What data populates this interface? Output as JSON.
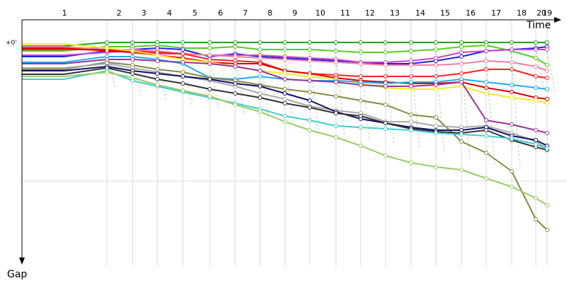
{
  "chart_data": {
    "type": "line",
    "x_axis_label": "Time",
    "y_axis_label": "Gap",
    "y_tick_label": "+0'",
    "laps": [
      "1",
      "2",
      "3",
      "4",
      "5",
      "6",
      "7",
      "8",
      "9",
      "10",
      "11",
      "12",
      "13",
      "14",
      "15",
      "16",
      "17",
      "18",
      "20",
      "19"
    ],
    "grid": true,
    "series": [
      {
        "color": "#1aa31a",
        "values": [
          5,
          0,
          0,
          0,
          0,
          0,
          0,
          0,
          0,
          0,
          0,
          0,
          0,
          0,
          0,
          0,
          0,
          0,
          0,
          0
        ]
      },
      {
        "color": "#55cc22",
        "values": [
          12,
          6,
          6,
          4,
          8,
          8,
          6,
          10,
          10,
          10,
          12,
          14,
          14,
          12,
          10,
          6,
          4,
          12,
          22,
          32
        ]
      },
      {
        "color": "#2222dd",
        "values": [
          20,
          12,
          10,
          8,
          10,
          20,
          16,
          20,
          22,
          24,
          26,
          28,
          30,
          30,
          26,
          20,
          12,
          10,
          8,
          6
        ]
      },
      {
        "color": "#cc44cc",
        "values": [
          18,
          14,
          12,
          16,
          16,
          18,
          18,
          18,
          20,
          22,
          24,
          28,
          28,
          26,
          22,
          14,
          12,
          10,
          10,
          10
        ]
      },
      {
        "color": "#f080a0",
        "values": [
          6,
          10,
          10,
          12,
          16,
          18,
          20,
          22,
          24,
          26,
          28,
          30,
          32,
          32,
          32,
          30,
          26,
          28,
          34,
          40
        ]
      },
      {
        "color": "#ff2222",
        "values": [
          10,
          10,
          12,
          14,
          16,
          24,
          26,
          28,
          40,
          44,
          46,
          48,
          48,
          48,
          48,
          44,
          38,
          38,
          48,
          50
        ]
      },
      {
        "color": "#dd0000",
        "values": [
          8,
          12,
          14,
          18,
          22,
          28,
          30,
          30,
          40,
          44,
          50,
          54,
          56,
          58,
          58,
          56,
          64,
          70,
          78,
          80
        ]
      },
      {
        "color": "#eeee22",
        "values": [
          2,
          8,
          12,
          18,
          24,
          28,
          34,
          40,
          44,
          48,
          52,
          58,
          64,
          66,
          66,
          62,
          72,
          78,
          82,
          86
        ]
      },
      {
        "color": "#22aaee",
        "values": [
          28,
          20,
          20,
          24,
          30,
          50,
          52,
          48,
          52,
          54,
          54,
          56,
          58,
          56,
          56,
          52,
          56,
          60,
          64,
          66
        ]
      },
      {
        "color": "#993399",
        "values": [
          30,
          24,
          24,
          26,
          28,
          30,
          34,
          40,
          52,
          54,
          56,
          60,
          62,
          62,
          60,
          56,
          110,
          116,
          124,
          128
        ]
      },
      {
        "color": "#888844",
        "values": [
          38,
          28,
          32,
          38,
          42,
          50,
          54,
          60,
          66,
          70,
          76,
          82,
          88,
          102,
          106,
          140,
          156,
          182,
          250,
          265
        ]
      },
      {
        "color": "#aaaaaa",
        "values": [
          36,
          30,
          36,
          42,
          48,
          54,
          62,
          72,
          80,
          90,
          96,
          100,
          112,
          112,
          118,
          120,
          118,
          128,
          140,
          150
        ]
      },
      {
        "color": "#111166",
        "values": [
          40,
          34,
          40,
          44,
          48,
          52,
          58,
          62,
          72,
          82,
          98,
          108,
          114,
          120,
          124,
          124,
          120,
          132,
          138,
          146
        ]
      },
      {
        "color": "#333333",
        "values": [
          45,
          36,
          44,
          52,
          58,
          66,
          72,
          78,
          86,
          92,
          100,
          104,
          114,
          122,
          126,
          128,
          124,
          138,
          148,
          152
        ]
      },
      {
        "color": "#44cccc",
        "values": [
          52,
          40,
          54,
          62,
          70,
          78,
          86,
          94,
          104,
          110,
          118,
          120,
          122,
          124,
          128,
          130,
          132,
          136,
          144,
          150
        ]
      },
      {
        "color": "#99cc66",
        "values": [
          48,
          42,
          50,
          60,
          68,
          76,
          88,
          98,
          112,
          124,
          134,
          146,
          160,
          170,
          176,
          180,
          192,
          204,
          220,
          230
        ]
      }
    ]
  }
}
